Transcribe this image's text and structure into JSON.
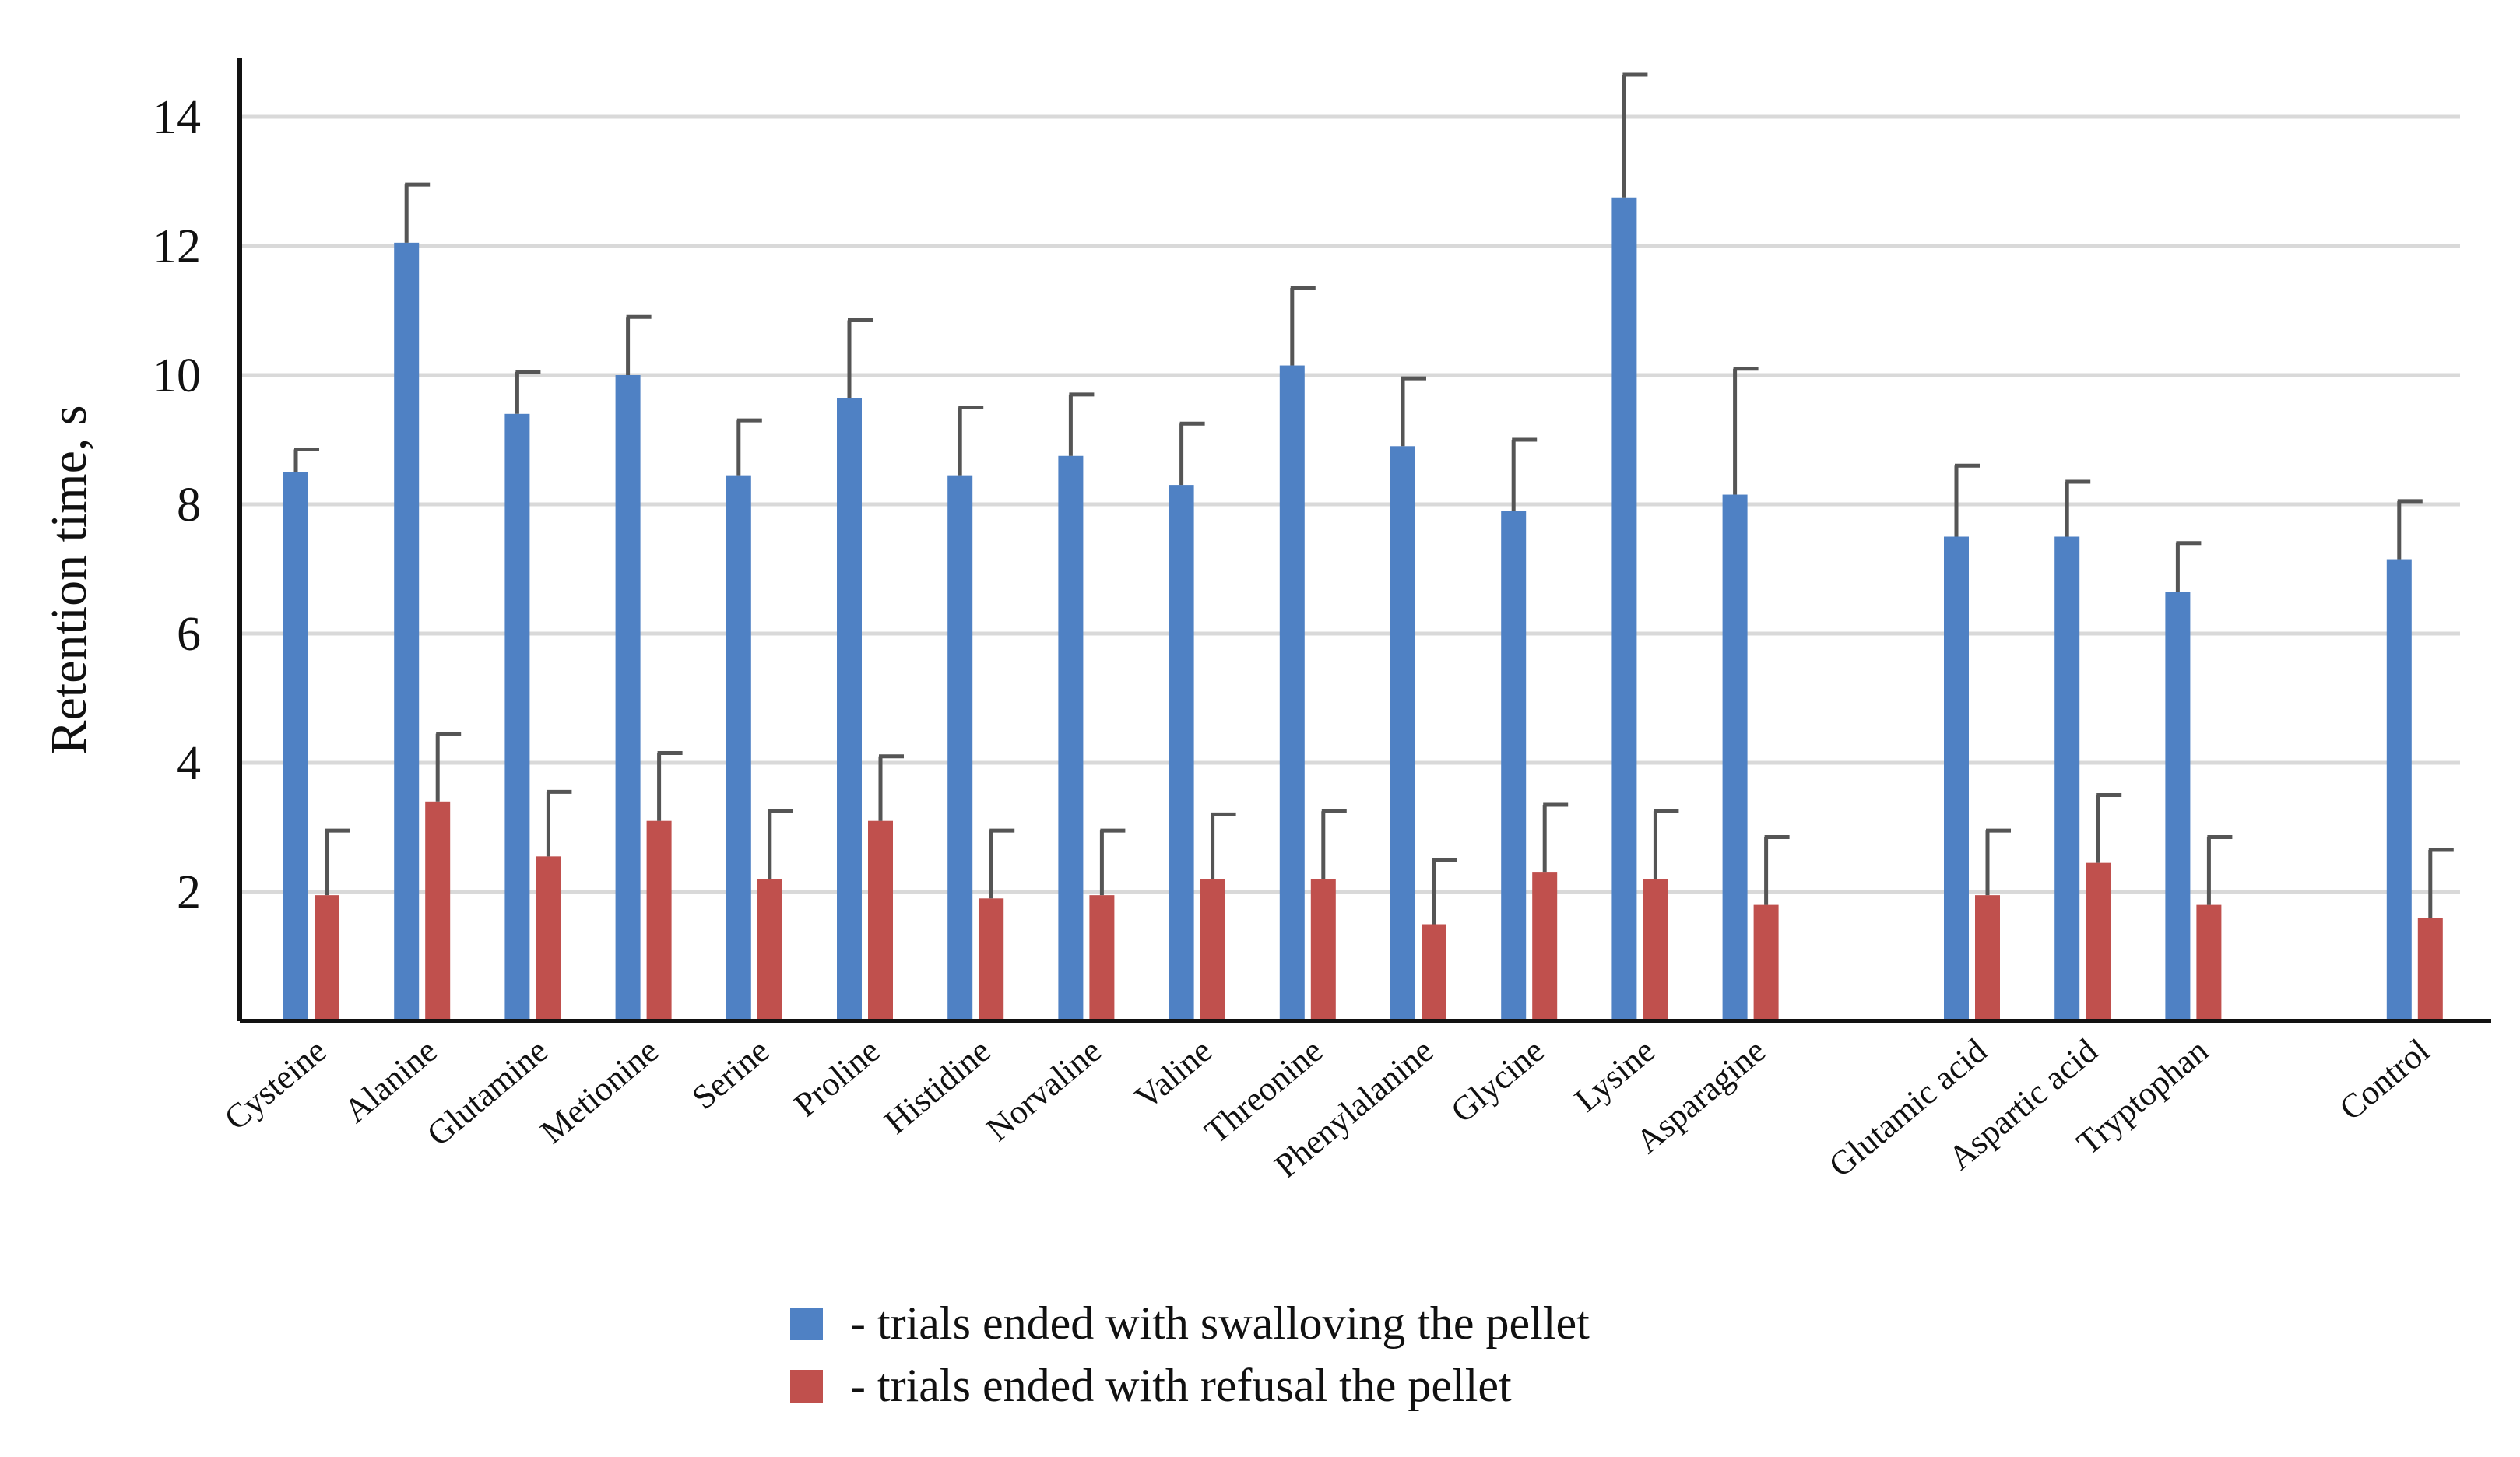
{
  "chart_data": {
    "type": "bar",
    "title": "",
    "xlabel": "",
    "ylabel": "Retention time, s",
    "ylim": [
      0,
      15
    ],
    "yticks": [
      2,
      4,
      6,
      8,
      10,
      12,
      14
    ],
    "grid": true,
    "legend_position": "bottom",
    "categories": [
      "Cysteine",
      "Alanine",
      "Glutamine",
      "Metionine",
      "Serine",
      "Proline",
      "Histidine",
      "Norvaline",
      "Valine",
      "Threonine",
      "Phenylalanine",
      "Glycine",
      "Lysine",
      "Asparagine",
      "Glutamic acid",
      "Aspartic acid",
      "Tryptophan",
      "Control"
    ],
    "slots": [
      0,
      1,
      2,
      3,
      4,
      5,
      6,
      7,
      8,
      9,
      10,
      11,
      12,
      13,
      15,
      16,
      17,
      19
    ],
    "series": [
      {
        "name": "- trials ended with swalloving the pellet",
        "color": "#4f81c4",
        "values": [
          8.5,
          12.05,
          9.4,
          10.0,
          8.45,
          9.65,
          8.45,
          8.75,
          8.3,
          10.15,
          8.9,
          7.9,
          12.75,
          8.15,
          7.5,
          7.5,
          6.65,
          7.15
        ],
        "errors": [
          0.35,
          0.9,
          0.65,
          0.9,
          0.85,
          1.2,
          1.05,
          0.95,
          0.95,
          1.2,
          1.05,
          1.1,
          1.9,
          1.95,
          1.1,
          0.85,
          0.75,
          0.9
        ]
      },
      {
        "name": "- trials ended with refusal the pellet",
        "color": "#c0504d",
        "values": [
          1.95,
          3.4,
          2.55,
          3.1,
          2.2,
          3.1,
          1.9,
          1.95,
          2.2,
          2.2,
          1.5,
          2.3,
          2.2,
          1.8,
          1.95,
          2.45,
          1.8,
          1.6
        ],
        "errors": [
          1.0,
          1.05,
          1.0,
          1.05,
          1.05,
          1.0,
          1.05,
          1.0,
          1.0,
          1.05,
          1.0,
          1.05,
          1.05,
          1.05,
          1.0,
          1.05,
          1.05,
          1.05
        ]
      }
    ]
  }
}
